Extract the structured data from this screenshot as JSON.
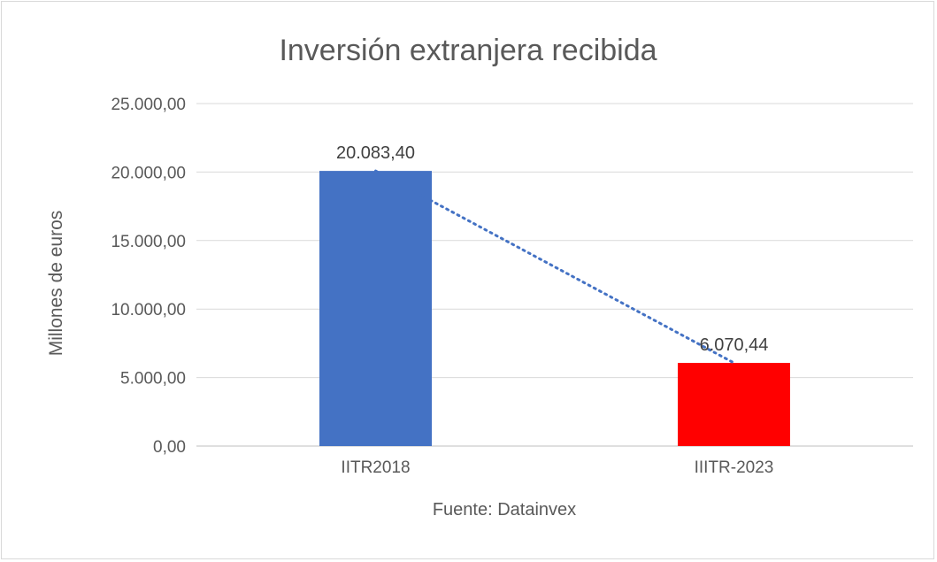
{
  "chart_data": {
    "type": "bar",
    "title": "Inversión extranjera recibida",
    "ylabel": "Millones de euros",
    "xlabel": "",
    "categories": [
      "IITR2018",
      "IIITR-2023"
    ],
    "values": [
      20083.4,
      6070.44
    ],
    "value_labels": [
      "20.083,40",
      "6.070,44"
    ],
    "bar_colors": [
      "#4472C4",
      "#FF0000"
    ],
    "trendline": {
      "style": "dotted",
      "color": "#4472C4"
    },
    "ylim": [
      0,
      25000
    ],
    "yticks": [
      0,
      5000,
      10000,
      15000,
      20000,
      25000
    ],
    "ytick_labels": [
      "0,00",
      "5.000,00",
      "10.000,00",
      "15.000,00",
      "20.000,00",
      "25.000,00"
    ],
    "grid": true,
    "legend": "none"
  },
  "source": "Fuente: Datainvex"
}
